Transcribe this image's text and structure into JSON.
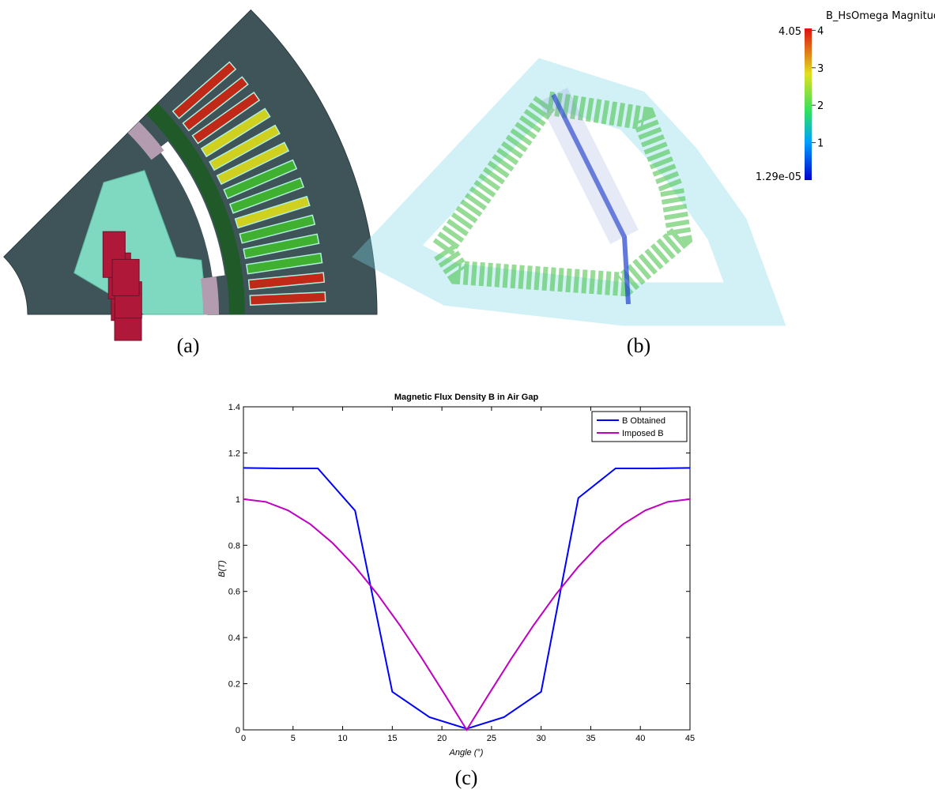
{
  "figure": {
    "panels": [
      {
        "caption": "(a)"
      },
      {
        "caption": "(b)",
        "colorbar": {
          "title": "B_HsOmega Magnitude",
          "range": [
            {
              "value": 1.29e-05,
              "label": "1.29e-05"
            },
            4.05
          ],
          "ticks": [
            1,
            2,
            3,
            4
          ]
        }
      },
      {
        "caption": "(c)"
      }
    ]
  },
  "chart_data": {
    "type": "line",
    "title": "Magnetic Flux Density B in Air Gap",
    "x_label": "Angle (°)",
    "y_label": "B(T)",
    "x": [
      0,
      2.25,
      3.75,
      4.5,
      6.75,
      7.5,
      9,
      11.25,
      13.5,
      15,
      15.75,
      18,
      18.75,
      20.25,
      22.5,
      24.75,
      26.25,
      27,
      29.25,
      30,
      31.5,
      33.75,
      36,
      37.5,
      38.25,
      40.5,
      41.25,
      42.75,
      45
    ],
    "series": [
      {
        "name": "B Obtained",
        "color": "#0000ff",
        "values": [
          1.135,
          null,
          1.133,
          null,
          null,
          1.133,
          null,
          0.95,
          null,
          0.165,
          null,
          null,
          0.055,
          null,
          0.005,
          null,
          0.055,
          null,
          null,
          0.165,
          null,
          1.005,
          null,
          1.133,
          null,
          null,
          1.133,
          null,
          1.135
        ]
      },
      {
        "name": "Imposed B",
        "color": "#c000c0",
        "values": [
          1,
          0.988,
          null,
          0.951,
          0.891,
          null,
          0.809,
          0.707,
          0.588,
          null,
          0.454,
          0.309,
          null,
          0.156,
          0,
          0.156,
          null,
          0.309,
          0.454,
          null,
          0.588,
          0.707,
          0.809,
          null,
          0.891,
          0.951,
          null,
          0.988,
          1
        ]
      }
    ],
    "xlim": [
      0,
      45
    ],
    "xticks": [
      0,
      5,
      10,
      15,
      20,
      25,
      30,
      35,
      40,
      45
    ],
    "ylim": [
      0,
      1.4
    ],
    "yticks": [
      0,
      0.2,
      0.4,
      0.6,
      0.8,
      1,
      1.2,
      1.4
    ],
    "legend": "top-right"
  }
}
